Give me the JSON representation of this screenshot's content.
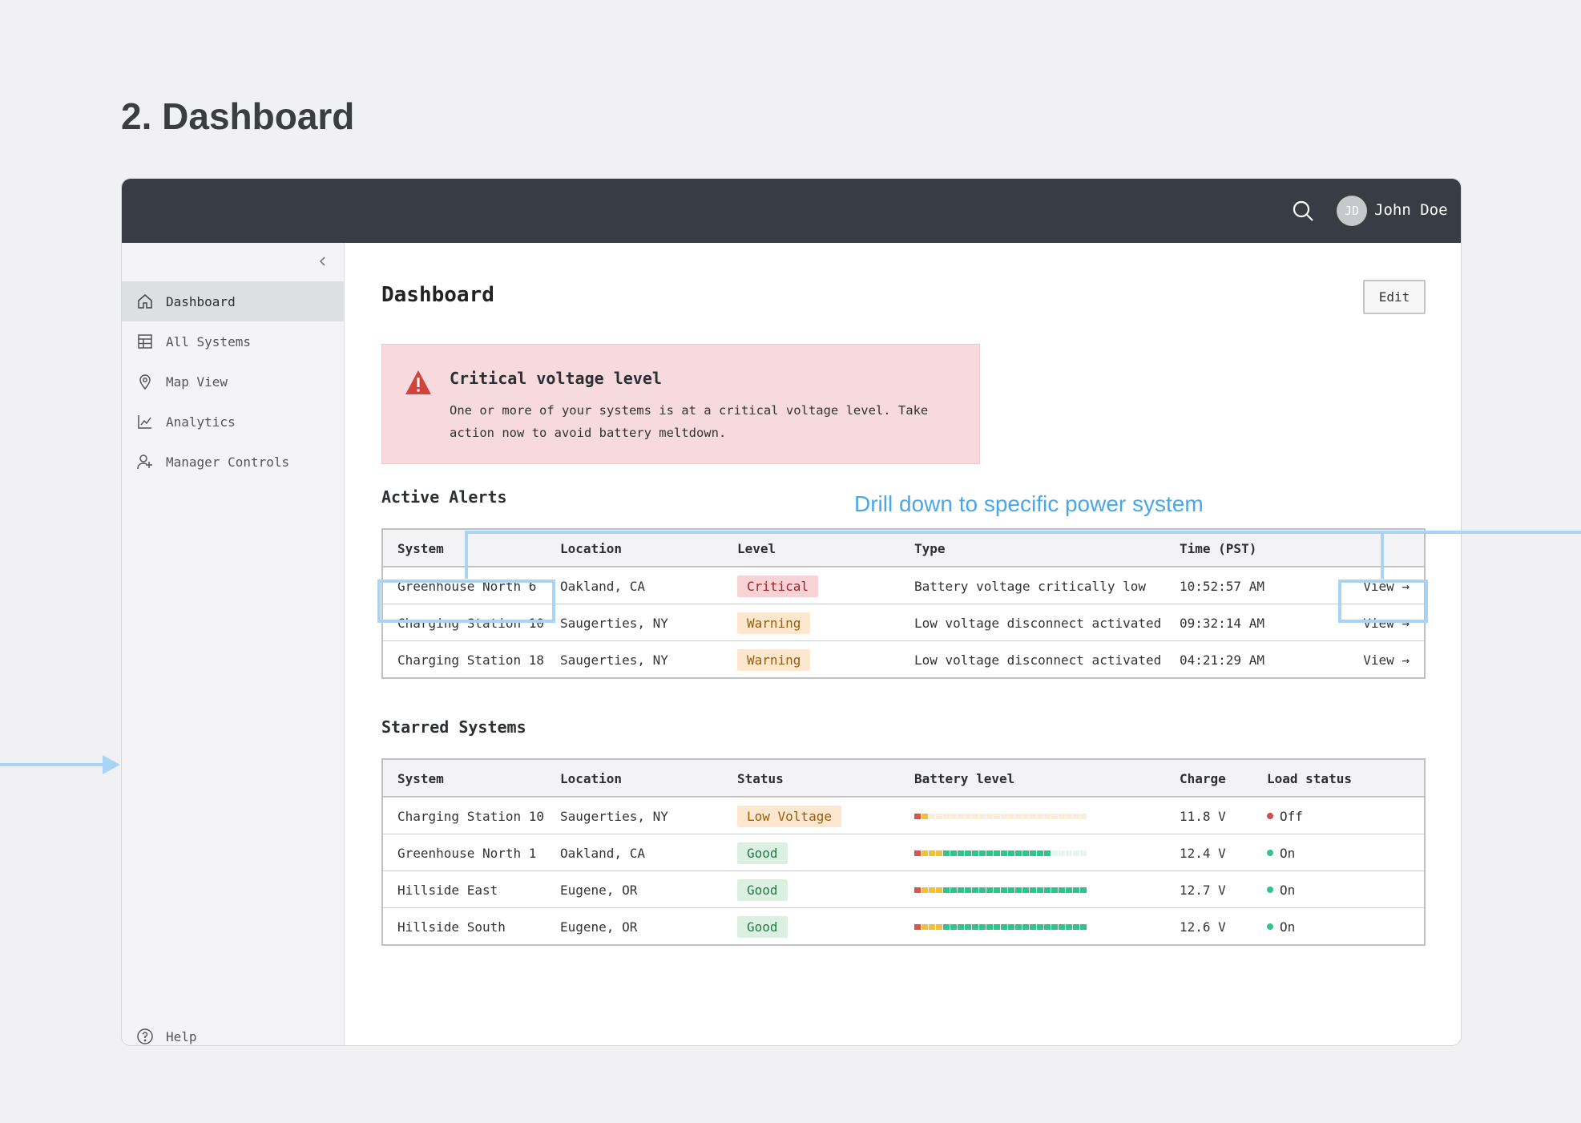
{
  "page_heading": "2. Dashboard",
  "topbar": {
    "avatar_initials": "JD",
    "user_name": "John Doe"
  },
  "sidebar": {
    "items": [
      {
        "label": "Dashboard",
        "icon": "home-icon",
        "active": true
      },
      {
        "label": "All Systems",
        "icon": "table-icon",
        "active": false
      },
      {
        "label": "Map View",
        "icon": "map-pin-icon",
        "active": false
      },
      {
        "label": "Analytics",
        "icon": "chart-icon",
        "active": false
      },
      {
        "label": "Manager Controls",
        "icon": "user-settings-icon",
        "active": false
      }
    ],
    "help_label": "Help"
  },
  "main": {
    "title": "Dashboard",
    "edit_label": "Edit",
    "alert": {
      "title": "Critical voltage level",
      "body": "One or more of your systems is at a critical voltage level. Take action now to avoid battery meltdown."
    },
    "active_alerts": {
      "title": "Active Alerts",
      "headers": [
        "System",
        "Location",
        "Level",
        "Type",
        "Time (PST)"
      ],
      "rows": [
        {
          "system": "Greenhouse North 6",
          "location": "Oakland, CA",
          "level": "Critical",
          "level_kind": "critical",
          "type": "Battery voltage critically low",
          "time": "10:52:57 AM",
          "action": "View →"
        },
        {
          "system": "Charging Station 10",
          "location": "Saugerties, NY",
          "level": "Warning",
          "level_kind": "warning",
          "type": "Low voltage disconnect activated",
          "time": "09:32:14 AM",
          "action": "View →"
        },
        {
          "system": "Charging Station 18",
          "location": "Saugerties, NY",
          "level": "Warning",
          "level_kind": "warning",
          "type": "Low voltage disconnect activated",
          "time": "04:21:29 AM",
          "action": "View →"
        }
      ]
    },
    "starred": {
      "title": "Starred Systems",
      "headers": [
        "System",
        "Location",
        "Status",
        "Battery level",
        "Charge",
        "Load status"
      ],
      "rows": [
        {
          "system": "Charging Station 10",
          "location": "Saugerties, NY",
          "status": "Low Voltage",
          "status_kind": "lowv",
          "battery_fraction": 0.1,
          "charge": "11.8 V",
          "load": "Off",
          "load_color": "#d24b4b"
        },
        {
          "system": "Greenhouse North 1",
          "location": "Oakland, CA",
          "status": "Good",
          "status_kind": "good",
          "battery_fraction": 0.79,
          "charge": "12.4 V",
          "load": "On",
          "load_color": "#2fc58a"
        },
        {
          "system": "Hillside East",
          "location": "Eugene, OR",
          "status": "Good",
          "status_kind": "good",
          "battery_fraction": 1.0,
          "charge": "12.7 V",
          "load": "On",
          "load_color": "#2fc58a"
        },
        {
          "system": "Hillside South",
          "location": "Eugene, OR",
          "status": "Good",
          "status_kind": "good",
          "battery_fraction": 1.0,
          "charge": "12.6 V",
          "load": "On",
          "load_color": "#2fc58a"
        }
      ]
    }
  },
  "annotation": {
    "text": "Drill down to specific power system"
  },
  "colors": {
    "topbar": "#383c44",
    "annotation": "#4aa6ec",
    "critical": "#a21f2c",
    "good": "#1d7a45"
  }
}
